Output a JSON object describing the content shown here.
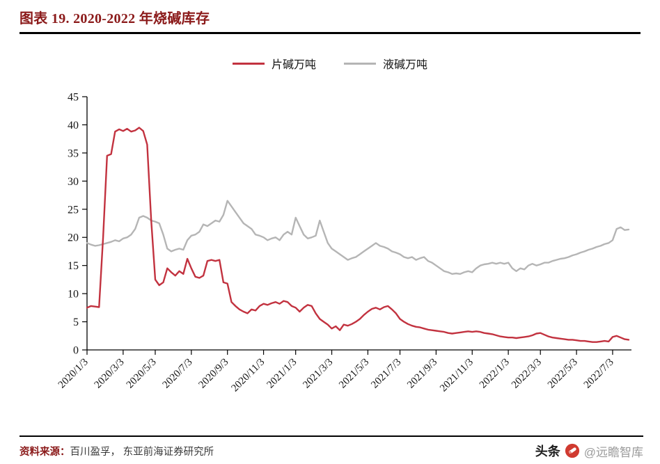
{
  "header": {
    "title": "图表 19. 2020-2022 年烧碱库存"
  },
  "footer": {
    "source_label": "资料来源：",
    "source_text": "百川盈孚， 东亚前海证券研究所",
    "watermark": {
      "toutiao": "头条",
      "handle": "@远瞻智库"
    }
  },
  "colors": {
    "title_red": "#8b1a1a",
    "flake_red": "#c2323f",
    "liquid_gray": "#b5b5b5",
    "axis_black": "#000000"
  },
  "chart_data": {
    "type": "line",
    "title": "2020-2022 年烧碱库存",
    "xlabel": "",
    "ylabel": "",
    "ylim": [
      0,
      45
    ],
    "grid": false,
    "legend_position": "top-center",
    "y_ticks": [
      0,
      5,
      10,
      15,
      20,
      25,
      30,
      35,
      40,
      45
    ],
    "x_tick_labels": [
      "2020/1/3",
      "2020/3/3",
      "2020/5/3",
      "2020/7/3",
      "2020/9/3",
      "2020/11/3",
      "2021/1/3",
      "2021/3/3",
      "2021/5/3",
      "2021/7/3",
      "2021/9/3",
      "2021/11/3",
      "2022/1/3",
      "2022/3/3",
      "2022/5/3",
      "2022/7/3"
    ],
    "x_tick_indices": [
      0,
      9,
      17,
      26,
      35,
      44,
      52,
      61,
      70,
      78,
      87,
      96,
      105,
      113,
      122,
      131
    ],
    "series": [
      {
        "name": "片碱万吨",
        "color": "#c2323f",
        "values": [
          7.5,
          7.8,
          7.7,
          7.6,
          20.0,
          34.5,
          34.8,
          38.8,
          39.2,
          38.9,
          39.3,
          38.8,
          39.0,
          39.5,
          38.9,
          36.5,
          23.0,
          12.5,
          11.5,
          12.0,
          14.5,
          13.8,
          13.2,
          14.0,
          13.5,
          16.2,
          14.5,
          13.0,
          12.8,
          13.2,
          15.8,
          16.0,
          15.8,
          16.0,
          12.0,
          11.8,
          8.5,
          7.8,
          7.2,
          6.8,
          6.5,
          7.2,
          7.0,
          7.8,
          8.2,
          8.0,
          8.3,
          8.5,
          8.2,
          8.7,
          8.5,
          7.8,
          7.5,
          6.8,
          7.5,
          8.0,
          7.8,
          6.5,
          5.5,
          5.0,
          4.5,
          3.8,
          4.2,
          3.5,
          4.5,
          4.3,
          4.6,
          5.0,
          5.5,
          6.2,
          6.8,
          7.3,
          7.5,
          7.2,
          7.6,
          7.8,
          7.2,
          6.5,
          5.5,
          5.0,
          4.6,
          4.3,
          4.1,
          4.0,
          3.8,
          3.6,
          3.5,
          3.4,
          3.3,
          3.2,
          3.0,
          2.9,
          3.0,
          3.1,
          3.2,
          3.3,
          3.2,
          3.3,
          3.2,
          3.0,
          2.9,
          2.8,
          2.6,
          2.4,
          2.3,
          2.2,
          2.2,
          2.1,
          2.2,
          2.3,
          2.4,
          2.6,
          2.9,
          3.0,
          2.7,
          2.4,
          2.2,
          2.1,
          2.0,
          1.9,
          1.8,
          1.8,
          1.7,
          1.6,
          1.6,
          1.5,
          1.4,
          1.4,
          1.5,
          1.6,
          1.5,
          2.3,
          2.5,
          2.2,
          1.9,
          1.8
        ]
      },
      {
        "name": "液碱万吨",
        "color": "#b5b5b5",
        "values": [
          19.0,
          18.7,
          18.5,
          18.6,
          18.8,
          19.0,
          19.2,
          19.5,
          19.3,
          19.8,
          20.0,
          20.5,
          21.5,
          23.5,
          23.8,
          23.5,
          23.0,
          22.8,
          22.5,
          20.5,
          18.0,
          17.5,
          17.8,
          18.0,
          17.8,
          19.5,
          20.3,
          20.5,
          21.0,
          22.3,
          22.0,
          22.5,
          23.0,
          22.8,
          24.0,
          26.5,
          25.5,
          24.5,
          23.5,
          22.5,
          22.0,
          21.5,
          20.5,
          20.3,
          20.0,
          19.5,
          19.8,
          20.0,
          19.5,
          20.5,
          21.0,
          20.5,
          23.5,
          22.0,
          20.5,
          19.8,
          20.0,
          20.3,
          23.0,
          21.0,
          19.0,
          18.0,
          17.5,
          17.0,
          16.5,
          16.0,
          16.3,
          16.5,
          17.0,
          17.5,
          18.0,
          18.5,
          19.0,
          18.5,
          18.3,
          18.0,
          17.5,
          17.3,
          17.0,
          16.5,
          16.3,
          16.5,
          16.0,
          16.3,
          16.5,
          15.8,
          15.5,
          15.0,
          14.5,
          14.0,
          13.8,
          13.5,
          13.6,
          13.5,
          13.8,
          14.0,
          13.8,
          14.5,
          15.0,
          15.2,
          15.3,
          15.5,
          15.3,
          15.5,
          15.3,
          15.5,
          14.5,
          14.0,
          14.5,
          14.3,
          15.0,
          15.3,
          15.0,
          15.2,
          15.5,
          15.5,
          15.8,
          16.0,
          16.2,
          16.3,
          16.5,
          16.8,
          17.0,
          17.3,
          17.5,
          17.8,
          18.0,
          18.3,
          18.5,
          18.8,
          19.0,
          19.5,
          21.5,
          21.8,
          21.3,
          21.4
        ]
      }
    ]
  }
}
